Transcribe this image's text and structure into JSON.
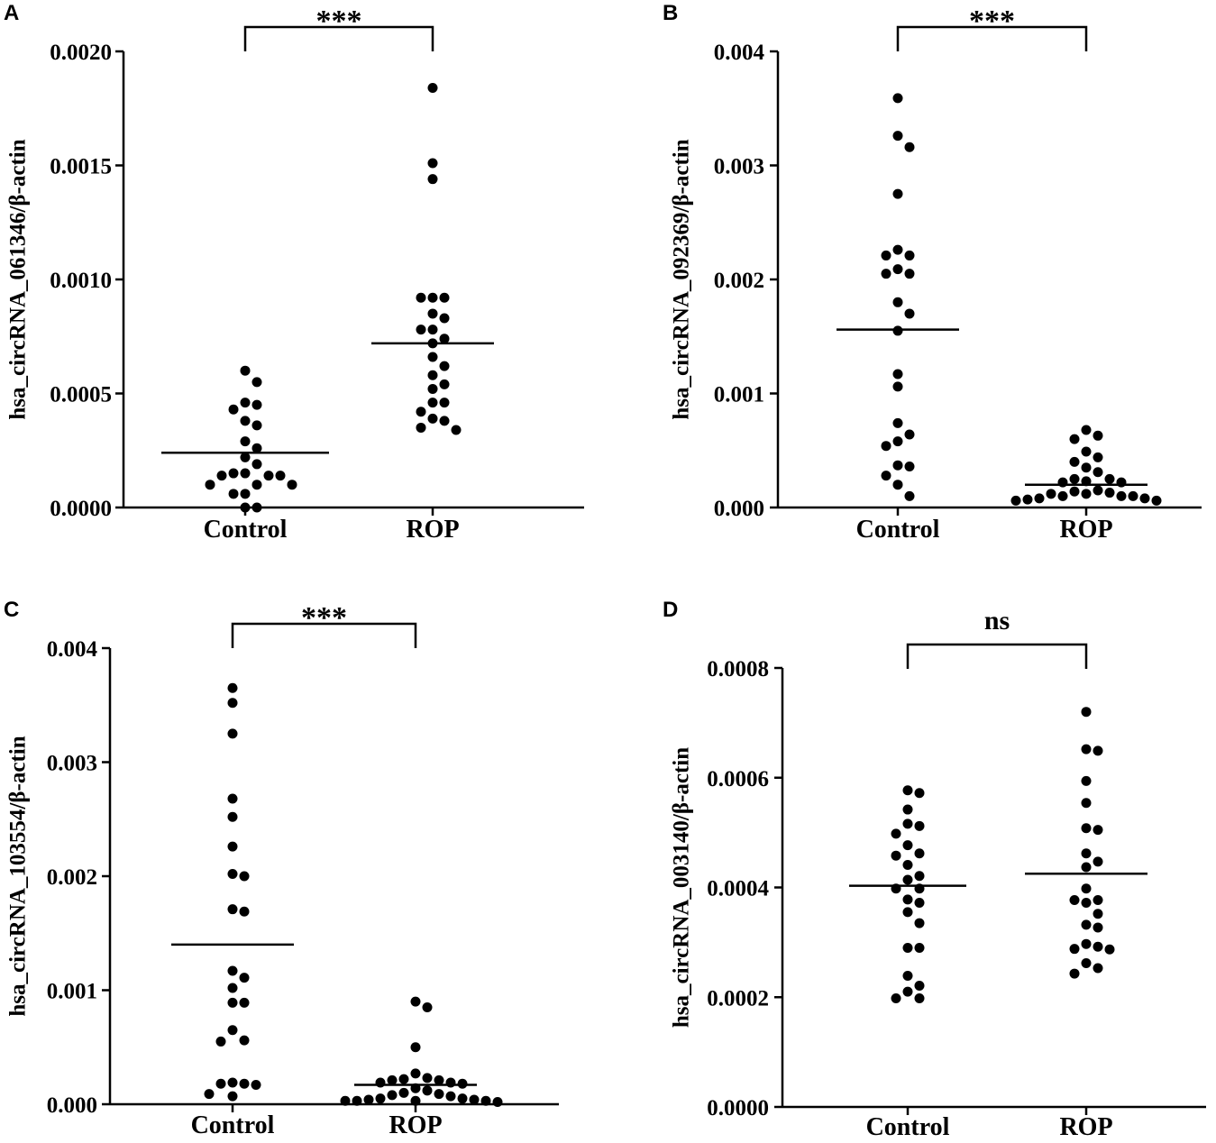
{
  "chart_data": [
    {
      "type": "scatter",
      "panel": "A",
      "ylabel": "hsa_circRNA_061346/β-actin",
      "ylim": [
        0,
        0.002
      ],
      "yticks": [
        "0.0000",
        "0.0005",
        "0.0010",
        "0.0015",
        "0.0020"
      ],
      "yticks_values": [
        0,
        0.0005,
        0.001,
        0.0015,
        0.002
      ],
      "categories": [
        "Control",
        "ROP"
      ],
      "significance": "***",
      "series": [
        {
          "name": "Control",
          "mean": 0.00024,
          "values": [
            0.0006,
            0.00055,
            0.00046,
            0.00045,
            0.00043,
            0.00038,
            0.00036,
            0.00029,
            0.00026,
            0.00022,
            0.00019,
            0.00015,
            0.00015,
            0.00014,
            0.00014,
            0.00014,
            0.0001,
            0.0001,
            0.0001,
            6e-05,
            6e-05,
            0.0,
            0.0
          ]
        },
        {
          "name": "ROP",
          "mean": 0.00072,
          "values": [
            0.00184,
            0.00151,
            0.00144,
            0.00092,
            0.00092,
            0.00092,
            0.00085,
            0.00083,
            0.00078,
            0.00078,
            0.00074,
            0.00072,
            0.00066,
            0.00062,
            0.00058,
            0.00054,
            0.00052,
            0.00046,
            0.00046,
            0.00042,
            0.00039,
            0.00038,
            0.00035,
            0.00034
          ]
        }
      ]
    },
    {
      "type": "scatter",
      "panel": "B",
      "ylabel": "hsa_circRNA_092369/β-actin",
      "ylim": [
        0,
        0.004
      ],
      "yticks": [
        "0.000",
        "0.001",
        "0.002",
        "0.003",
        "0.004"
      ],
      "yticks_values": [
        0,
        0.001,
        0.002,
        0.003,
        0.004
      ],
      "categories": [
        "Control",
        "ROP"
      ],
      "significance": "***",
      "series": [
        {
          "name": "Control",
          "mean": 0.00156,
          "values": [
            0.00359,
            0.00326,
            0.00316,
            0.00275,
            0.00226,
            0.00221,
            0.00221,
            0.00209,
            0.00205,
            0.00205,
            0.0018,
            0.0017,
            0.00155,
            0.00117,
            0.00106,
            0.00074,
            0.00064,
            0.00058,
            0.00054,
            0.00037,
            0.00036,
            0.00028,
            0.0002,
            0.0001
          ]
        },
        {
          "name": "ROP",
          "mean": 0.0002,
          "values": [
            0.00068,
            0.00063,
            0.0006,
            0.00049,
            0.00044,
            0.0004,
            0.00035,
            0.00031,
            0.00025,
            0.00025,
            0.00023,
            0.00022,
            0.00022,
            0.00015,
            0.00014,
            0.00013,
            0.00012,
            0.00012,
            0.0001,
            0.0001,
            0.0001,
            8e-05,
            8e-05,
            7e-05,
            6e-05,
            6e-05
          ]
        }
      ]
    },
    {
      "type": "scatter",
      "panel": "C",
      "ylabel": "hsa_circRNA_103554/β-actin",
      "ylim": [
        0,
        0.004
      ],
      "yticks": [
        "0.000",
        "0.001",
        "0.002",
        "0.003",
        "0.004"
      ],
      "yticks_values": [
        0,
        0.001,
        0.002,
        0.003,
        0.004
      ],
      "categories": [
        "Control",
        "ROP"
      ],
      "significance": "***",
      "series": [
        {
          "name": "Control",
          "mean": 0.0014,
          "values": [
            0.00365,
            0.00352,
            0.00325,
            0.00268,
            0.00252,
            0.00226,
            0.00202,
            0.002,
            0.00171,
            0.00169,
            0.00117,
            0.00111,
            0.00102,
            0.00089,
            0.00089,
            0.00065,
            0.00056,
            0.00055,
            0.00019,
            0.00018,
            0.00017,
            0.00018,
            9e-05,
            7e-05
          ]
        },
        {
          "name": "ROP",
          "mean": 0.00017,
          "values": [
            0.0009,
            0.00085,
            0.0005,
            0.00027,
            0.00023,
            0.00022,
            0.00021,
            0.00021,
            0.00019,
            0.00019,
            0.00018,
            0.00014,
            0.00012,
            0.0001,
            9e-05,
            8e-05,
            7e-05,
            5e-05,
            5e-05,
            4e-05,
            4e-05,
            3e-05,
            3e-05,
            3e-05,
            3e-05,
            2e-05
          ]
        }
      ]
    },
    {
      "type": "scatter",
      "panel": "D",
      "ylabel": "hsa_circRNA_003140/β-actin",
      "ylim": [
        0,
        0.0008
      ],
      "yticks": [
        "0.0000",
        "0.0002",
        "0.0004",
        "0.0006",
        "0.0008"
      ],
      "yticks_values": [
        0,
        0.0002,
        0.0004,
        0.0006,
        0.0008
      ],
      "categories": [
        "Control",
        "ROP"
      ],
      "significance": "ns",
      "series": [
        {
          "name": "Control",
          "mean": 0.000403,
          "values": [
            0.000577,
            0.000572,
            0.000542,
            0.000516,
            0.000512,
            0.000498,
            0.000477,
            0.000462,
            0.000458,
            0.000441,
            0.000421,
            0.000414,
            0.000398,
            0.000398,
            0.000378,
            0.000372,
            0.000355,
            0.000335,
            0.00029,
            0.00029,
            0.000239,
            0.000221,
            0.00021,
            0.000198,
            0.000198
          ]
        },
        {
          "name": "ROP",
          "mean": 0.000425,
          "values": [
            0.00072,
            0.000652,
            0.000649,
            0.000594,
            0.000554,
            0.000508,
            0.000505,
            0.000462,
            0.000447,
            0.000437,
            0.000398,
            0.000377,
            0.000377,
            0.000372,
            0.000352,
            0.000332,
            0.000327,
            0.000297,
            0.000292,
            0.000288,
            0.000287,
            0.000262,
            0.000253,
            0.000243
          ]
        }
      ]
    }
  ]
}
